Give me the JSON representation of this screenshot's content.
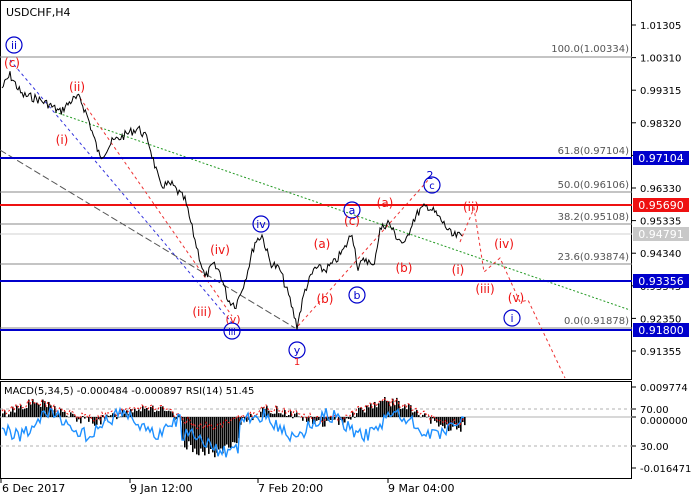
{
  "symbol_label": "USDCHF,H4",
  "price_axis": {
    "ticks": [
      "1.01305",
      "1.00310",
      "0.99315",
      "0.98320",
      "0.97325",
      "0.96330",
      "0.95335",
      "0.94340",
      "0.93345",
      "0.92350",
      "0.91355"
    ]
  },
  "horizontal_levels": [
    {
      "price_label": "0.97104",
      "color": "#0000cc",
      "text_color": "#ffffff"
    },
    {
      "price_label": "0.95690",
      "color": "#ee1111",
      "text_color": "#ffffff"
    },
    {
      "price_label": "0.93356",
      "color": "#0000cc",
      "text_color": "#ffffff"
    },
    {
      "price_label": "0.91800",
      "color": "#0000cc",
      "text_color": "#ffffff"
    }
  ],
  "current_price": {
    "label": "0.94791",
    "color": "#c8c8c8"
  },
  "fibonacci_levels": [
    "100.0(1.00334)",
    "61.8(0.97104)",
    "50.0(0.96106)",
    "38.2(0.95108)",
    "23.6(0.93874)",
    "0.0(0.91878)"
  ],
  "wave_labels": {
    "circled_blue": [
      "ii",
      "iv",
      "iii",
      "y",
      "a",
      "b",
      "i",
      "2",
      "c"
    ],
    "red": [
      "(c)",
      "(ii)",
      "(i)",
      "(iv)",
      "(iii)",
      "(v)",
      "(a)",
      "(b)",
      "(c)",
      "(a)",
      "(b)",
      "(i)",
      "(ii)",
      "(iii)",
      "(iv)",
      "(v)"
    ],
    "small_numbers": [
      "1",
      "2"
    ]
  },
  "indicator": {
    "label": "MACD(5,34,5) -0.000484 -0.000897 RSI(14) 51.45",
    "axis_ticks": [
      "0.009774",
      "70.00",
      "0.000000",
      "30.00",
      "-0.016471"
    ]
  },
  "time_axis": {
    "labels": [
      "6 Dec 2017",
      "9 Jan 12:00",
      "7 Feb 20:00",
      "9 Mar 04:00"
    ]
  },
  "colors": {
    "axis_line": "#000000",
    "gridline": "#c0c0c0",
    "blue_level": "#0000cc",
    "red_level": "#ee1111",
    "wave_blue": "#0000cc",
    "wave_red": "#ee1111",
    "green_trend": "#229922",
    "rsi_line": "#1e90ff"
  }
}
